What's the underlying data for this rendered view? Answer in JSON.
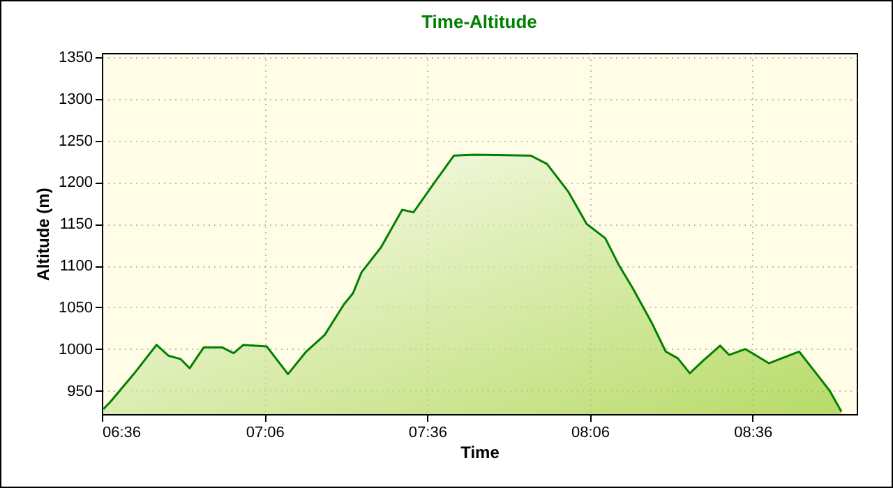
{
  "chart_data": {
    "type": "area",
    "title": "Time-Altitude",
    "xlabel": "Time",
    "ylabel": "Altitude (m)",
    "xlim": [
      6.6,
      8.92
    ],
    "ylim": [
      922,
      1355
    ],
    "xticks": [
      {
        "value": 6.6,
        "label": "06:36"
      },
      {
        "value": 7.1,
        "label": "07:06"
      },
      {
        "value": 7.6,
        "label": "07:36"
      },
      {
        "value": 8.1,
        "label": "08:06"
      },
      {
        "value": 8.6,
        "label": "08:36"
      }
    ],
    "yticks": [
      950,
      1000,
      1050,
      1100,
      1150,
      1200,
      1250,
      1300,
      1350
    ],
    "grid": true,
    "x": [
      6.605,
      6.627,
      6.698,
      6.768,
      6.805,
      6.842,
      6.87,
      6.913,
      6.97,
      7.005,
      7.035,
      7.107,
      7.172,
      7.228,
      7.285,
      7.343,
      7.372,
      7.398,
      7.458,
      7.523,
      7.558,
      7.623,
      7.682,
      7.745,
      7.918,
      7.968,
      8.033,
      8.09,
      8.147,
      8.19,
      8.233,
      8.292,
      8.333,
      8.37,
      8.407,
      8.448,
      8.5,
      8.528,
      8.578,
      8.65,
      8.743,
      8.793,
      8.837,
      8.873
    ],
    "series": [
      {
        "color": "#008000",
        "values": [
          928,
          937,
          970,
          1005,
          992,
          988,
          977,
          1002,
          1002,
          995,
          1005,
          1003,
          970,
          997,
          1017,
          1053,
          1067,
          1092,
          1122,
          1167,
          1164,
          1200,
          1232,
          1233,
          1232,
          1222,
          1189,
          1150,
          1133,
          1100,
          1072,
          1030,
          997,
          989,
          971,
          986,
          1004,
          993,
          1000,
          983,
          997,
          972,
          950,
          925
        ]
      }
    ]
  }
}
